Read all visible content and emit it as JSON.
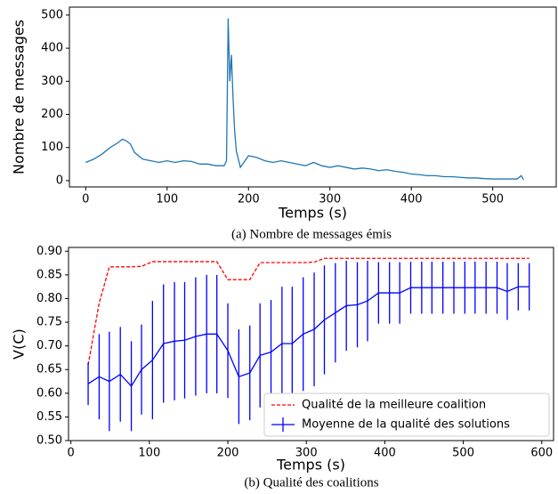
{
  "chart_data": [
    {
      "type": "line",
      "caption": "(a) Nombre de messages émis",
      "xlabel": "Temps (s)",
      "ylabel": "Nombre de messages",
      "color": "#1f77b4",
      "x": [
        0,
        10,
        20,
        30,
        40,
        45,
        50,
        55,
        60,
        70,
        80,
        90,
        100,
        110,
        120,
        130,
        140,
        150,
        160,
        170,
        173,
        175,
        177,
        179,
        181,
        183,
        185,
        190,
        200,
        210,
        220,
        230,
        240,
        250,
        260,
        270,
        280,
        290,
        300,
        310,
        320,
        330,
        340,
        350,
        360,
        370,
        380,
        390,
        400,
        410,
        420,
        430,
        440,
        450,
        460,
        470,
        480,
        490,
        500,
        510,
        520,
        530,
        535,
        538
      ],
      "values": [
        55,
        65,
        80,
        100,
        115,
        125,
        120,
        110,
        85,
        65,
        60,
        55,
        60,
        55,
        60,
        58,
        50,
        50,
        45,
        45,
        60,
        490,
        300,
        380,
        250,
        150,
        90,
        40,
        75,
        70,
        60,
        55,
        60,
        55,
        50,
        45,
        55,
        45,
        40,
        45,
        40,
        35,
        38,
        35,
        30,
        33,
        28,
        25,
        20,
        18,
        15,
        15,
        12,
        12,
        10,
        8,
        8,
        6,
        5,
        5,
        5,
        5,
        15,
        3
      ],
      "xlim": [
        -20,
        578
      ],
      "ylim": [
        -19,
        524
      ],
      "xticks": [
        0,
        100,
        200,
        300,
        400,
        500
      ],
      "yticks": [
        0,
        100,
        200,
        300,
        400,
        500
      ]
    },
    {
      "type": "line",
      "caption": "(b) Qualité des coalitions",
      "xlabel": "Temps (s)",
      "ylabel": "V(C)",
      "legend": "lower right",
      "x": [
        22,
        36,
        49,
        63,
        77,
        90,
        104,
        118,
        132,
        145,
        159,
        173,
        186,
        200,
        214,
        228,
        241,
        255,
        269,
        282,
        296,
        310,
        323,
        337,
        351,
        365,
        378,
        392,
        406,
        419,
        433,
        447,
        460,
        474,
        488,
        502,
        515,
        529,
        543,
        556,
        570,
        584
      ],
      "series": [
        {
          "name": "Qualité de la meilleure coalition",
          "color": "#ff0000",
          "linestyle": "dashed",
          "values": [
            0.66,
            0.79,
            0.867,
            0.867,
            0.867,
            0.868,
            0.878,
            0.878,
            0.878,
            0.878,
            0.878,
            0.878,
            0.878,
            0.84,
            0.84,
            0.84,
            0.876,
            0.876,
            0.876,
            0.876,
            0.876,
            0.877,
            0.885,
            0.885,
            0.885,
            0.885,
            0.885,
            0.885,
            0.885,
            0.885,
            0.885,
            0.885,
            0.885,
            0.885,
            0.885,
            0.885,
            0.885,
            0.885,
            0.885,
            0.885,
            0.885,
            0.885
          ]
        },
        {
          "name": "Moyenne de la qualité des solutions",
          "color": "#0000ff",
          "linestyle": "solid",
          "values": [
            0.62,
            0.635,
            0.625,
            0.64,
            0.615,
            0.65,
            0.67,
            0.705,
            0.71,
            0.712,
            0.72,
            0.725,
            0.725,
            0.69,
            0.635,
            0.643,
            0.68,
            0.687,
            0.705,
            0.705,
            0.725,
            0.735,
            0.755,
            0.77,
            0.785,
            0.787,
            0.795,
            0.812,
            0.812,
            0.812,
            0.823,
            0.823,
            0.823,
            0.823,
            0.823,
            0.823,
            0.823,
            0.823,
            0.823,
            0.815,
            0.825,
            0.825
          ],
          "error": [
            0.045,
            0.09,
            0.105,
            0.1,
            0.095,
            0.095,
            0.125,
            0.125,
            0.125,
            0.123,
            0.125,
            0.125,
            0.125,
            0.1,
            0.1,
            0.1,
            0.11,
            0.11,
            0.12,
            0.12,
            0.12,
            0.12,
            0.115,
            0.105,
            0.095,
            0.09,
            0.085,
            0.065,
            0.065,
            0.065,
            0.055,
            0.055,
            0.055,
            0.055,
            0.055,
            0.055,
            0.055,
            0.055,
            0.055,
            0.06,
            0.05,
            0.05
          ]
        }
      ],
      "xlim": [
        -3,
        615
      ],
      "ylim": [
        0.5,
        0.908
      ],
      "xticks": [
        0,
        100,
        200,
        300,
        400,
        500,
        600
      ],
      "yticks": [
        {
          "value": 0.5,
          "label": "0.50"
        },
        {
          "value": 0.55,
          "label": "0.55"
        },
        {
          "value": 0.6,
          "label": "0.60"
        },
        {
          "value": 0.65,
          "label": "0.65"
        },
        {
          "value": 0.7,
          "label": "0.70"
        },
        {
          "value": 0.75,
          "label": "0.75"
        },
        {
          "value": 0.8,
          "label": "0.80"
        },
        {
          "value": 0.85,
          "label": "0.85"
        },
        {
          "value": 0.9,
          "label": "0.90"
        }
      ]
    }
  ]
}
